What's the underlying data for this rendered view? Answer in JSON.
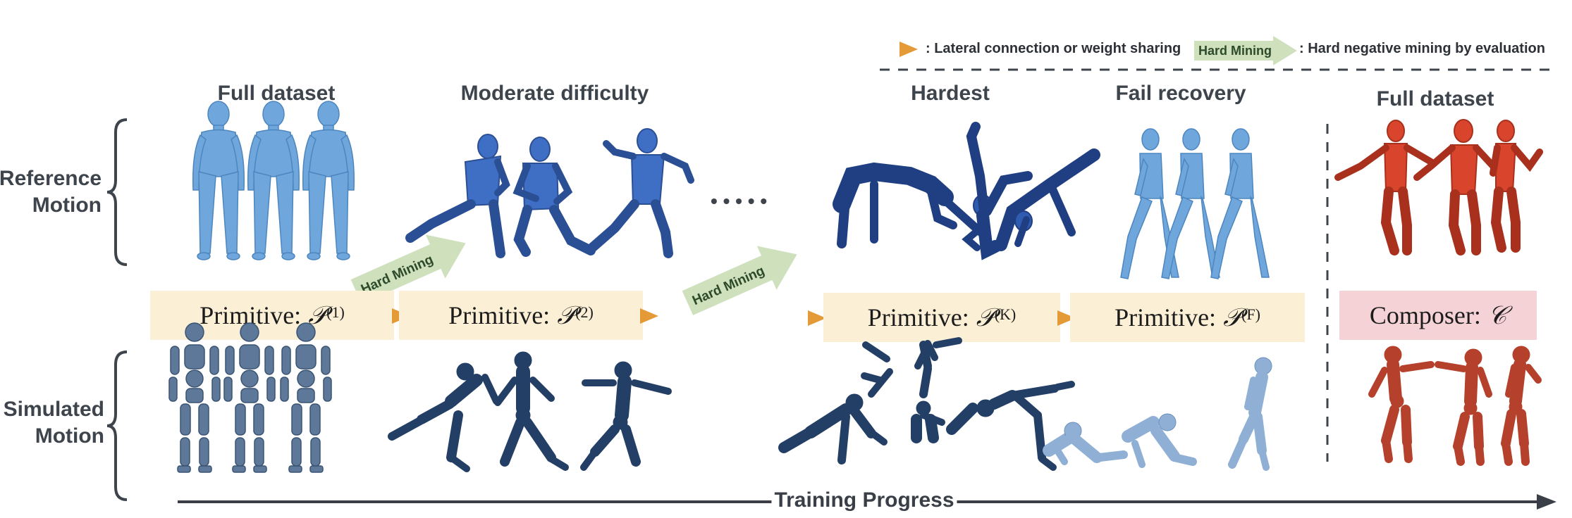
{
  "legend": {
    "lateral_text": ": Lateral connection or weight sharing",
    "hard_mining_arrow_label": "Hard Mining",
    "hard_mining_text": ": Hard negative mining by evaluation"
  },
  "stage_headers": {
    "full_dataset_1": "Full dataset",
    "moderate": "Moderate difficulty",
    "hardest": "Hardest",
    "fail_recovery": "Fail recovery",
    "full_dataset_2": "Full dataset"
  },
  "rows": {
    "reference": "Reference\nMotion",
    "simulated": "Simulated\nMotion"
  },
  "ellipsis": "• • • • •",
  "hard_mining_arrows": [
    "Hard Mining",
    "Hard Mining"
  ],
  "primitives": [
    {
      "prefix": "Primitive: ",
      "symbol": "𝒫",
      "sup": "(1)"
    },
    {
      "prefix": "Primitive: ",
      "symbol": "𝒫",
      "sup": "(2)"
    },
    {
      "prefix": "Primitive: ",
      "symbol": "𝒫",
      "sup": "(K)"
    },
    {
      "prefix": "Primitive: ",
      "symbol": "𝒫",
      "sup": "(F)"
    }
  ],
  "composer": {
    "prefix": "Composer: ",
    "symbol": "𝒞"
  },
  "progress_label": "Training Progress",
  "colors": {
    "primitive_bg": "#fbf0d6",
    "composer_bg": "#f5d2d6",
    "lateral_arrow": "#e59a38",
    "hard_mining_arrow": "#cfe0bd",
    "ref_light_blue": "#6fa7dc",
    "ref_blue": "#3f6fc4",
    "ref_dark_blue": "#2f5bb0",
    "ref_red": "#d9452c",
    "sim_dark": "#2e4a72",
    "sim_light": "#6b8fbd",
    "sim_red": "#b5402b"
  }
}
